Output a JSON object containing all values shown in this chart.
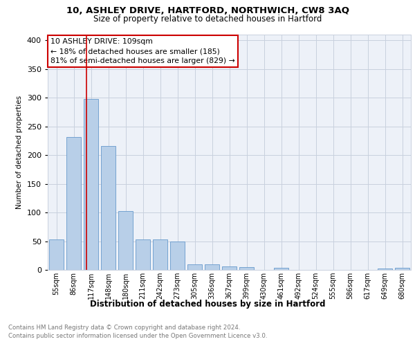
{
  "title_line1": "10, ASHLEY DRIVE, HARTFORD, NORTHWICH, CW8 3AQ",
  "title_line2": "Size of property relative to detached houses in Hartford",
  "xlabel": "Distribution of detached houses by size in Hartford",
  "ylabel": "Number of detached properties",
  "categories": [
    "55sqm",
    "86sqm",
    "117sqm",
    "148sqm",
    "180sqm",
    "211sqm",
    "242sqm",
    "273sqm",
    "305sqm",
    "336sqm",
    "367sqm",
    "399sqm",
    "430sqm",
    "461sqm",
    "492sqm",
    "524sqm",
    "555sqm",
    "586sqm",
    "617sqm",
    "649sqm",
    "680sqm"
  ],
  "values": [
    53,
    232,
    298,
    216,
    103,
    53,
    53,
    49,
    10,
    10,
    6,
    5,
    0,
    4,
    0,
    0,
    0,
    0,
    0,
    3,
    4
  ],
  "bar_color": "#b8cfe8",
  "bar_edge_color": "#6699cc",
  "annotation_text": "10 ASHLEY DRIVE: 109sqm\n← 18% of detached houses are smaller (185)\n81% of semi-detached houses are larger (829) →",
  "vline_color": "#cc0000",
  "ylim": [
    0,
    410
  ],
  "yticks": [
    0,
    50,
    100,
    150,
    200,
    250,
    300,
    350,
    400
  ],
  "grid_color": "#c8d0de",
  "footnote_line1": "Contains HM Land Registry data © Crown copyright and database right 2024.",
  "footnote_line2": "Contains public sector information licensed under the Open Government Licence v3.0.",
  "bg_color": "#edf1f8"
}
